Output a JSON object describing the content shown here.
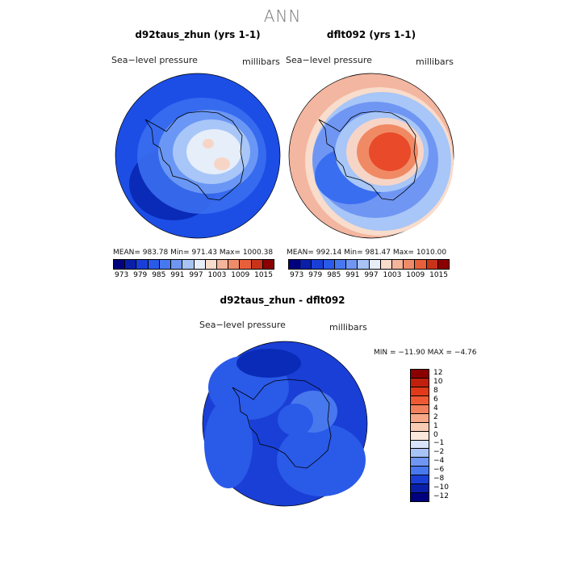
{
  "title": "ANN",
  "panels": [
    {
      "title": "d92taus_zhun (yrs 1-1)",
      "field_label": "Sea−level pressure",
      "units": "millibars",
      "stats": "MEAN= 983.78   Min= 971.43   Max= 1000.38",
      "map_colors": {
        "outer": "#1c4ee6",
        "ring": "#3a6ef0",
        "mid": "#6a97f5",
        "inner": "#a8c6f7",
        "core": "#e6eef9",
        "peak": "#f7d5c6",
        "low": "#0a2bb8"
      }
    },
    {
      "title": "dflt092 (yrs 1-1)",
      "field_label": "Sea−level pressure",
      "units": "millibars",
      "stats": "MEAN= 992.14   Min= 981.47   Max= 1010.00",
      "map_colors": {
        "outer": "#f3b6a0",
        "ring": "#a8c6f7",
        "mid": "#5a86f0",
        "inner": "#f7d5c6",
        "core": "#f08a64",
        "peak": "#e84a2a",
        "low": "#3a6ef0"
      }
    }
  ],
  "shared_colorbar": {
    "colors": [
      "#00007f",
      "#0a1fa8",
      "#1a3fd6",
      "#2a5ae8",
      "#4878ee",
      "#7096f3",
      "#a8c3f5",
      "#e8eef9",
      "#f8dccc",
      "#f3b59c",
      "#ee8c6a",
      "#e85f3c",
      "#c8341a",
      "#8b0000"
    ],
    "tick_labels": [
      "973",
      "979",
      "985",
      "991",
      "997",
      "1003",
      "1009",
      "1015"
    ]
  },
  "diff_panel": {
    "title": "d92taus_zhun - dflt092",
    "field_label": "Sea−level pressure",
    "units": "millibars",
    "stats": "MIN = −11.90  MAX =  −4.76",
    "map_colors": {
      "outer": "#1a3fd6",
      "ring": "#2a5ae8",
      "mid": "#4878ee",
      "inner": "#1a3fd6",
      "low": "#0a2bb8"
    }
  },
  "diff_colorbar": {
    "colors": [
      "#8b0000",
      "#c0200c",
      "#e03a1a",
      "#ef5a34",
      "#f3805c",
      "#f6a888",
      "#f8ccb4",
      "#fbe8dc",
      "#d8e4fa",
      "#a8c3f5",
      "#7096f3",
      "#4878ee",
      "#1a3fd6",
      "#0a1fa8",
      "#00007f"
    ],
    "tick_labels": [
      "12",
      "10",
      "8",
      "6",
      "4",
      "2",
      "1",
      "0",
      "−1",
      "−2",
      "−4",
      "−6",
      "−8",
      "−10",
      "−12"
    ]
  }
}
